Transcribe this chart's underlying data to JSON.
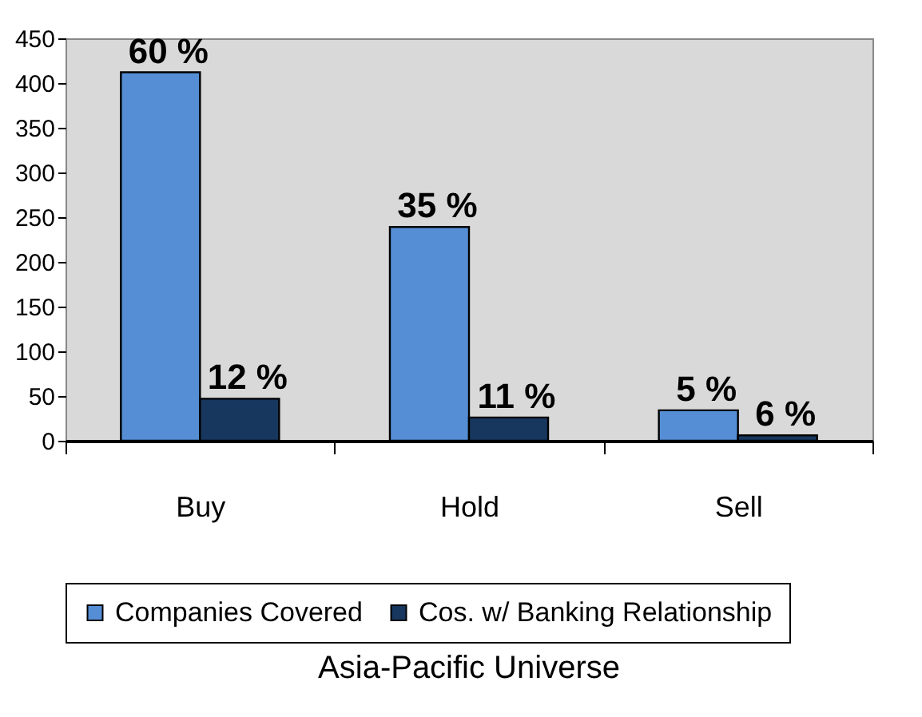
{
  "chart_data": {
    "type": "bar",
    "xlabel": "Asia-Pacific Universe",
    "categories": [
      "Buy",
      "Hold",
      "Sell"
    ],
    "series": [
      {
        "name": "Companies Covered",
        "color": "#558ed5",
        "values": [
          412,
          239,
          34
        ]
      },
      {
        "name": "Cos. w/ Banking Relationship",
        "color": "#17375e",
        "values": [
          47,
          26,
          6
        ]
      }
    ],
    "annotations": [
      {
        "text": "60 %",
        "x": "Buy",
        "y": 412
      },
      {
        "text": "12 %",
        "x": "Buy",
        "y": 47
      },
      {
        "text": "35 %",
        "x": "Hold",
        "y": 239
      },
      {
        "text": "11 %",
        "x": "Hold",
        "y": 26
      },
      {
        "text": "5 %",
        "x": "Sell",
        "y": 34
      },
      {
        "text": "6 %",
        "x": "Sell",
        "y": 6
      }
    ],
    "ylim": [
      0,
      450
    ],
    "yticks": [
      0,
      50,
      100,
      150,
      200,
      250,
      300,
      350,
      400,
      450
    ],
    "grid": false,
    "legend": "bottom"
  }
}
